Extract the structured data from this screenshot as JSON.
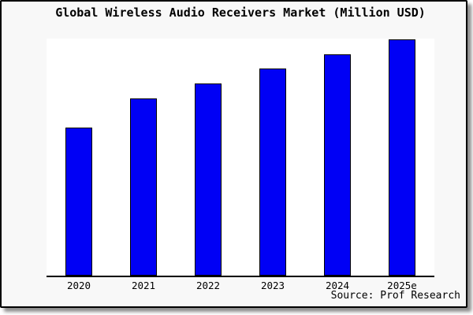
{
  "window": {
    "card_background": "#f8f8f8",
    "plot_background": "#ffffff",
    "frame_border_color": "#000000"
  },
  "chart_data": {
    "type": "bar",
    "title": "Global Wireless Audio Receivers Market (Million USD)",
    "categories": [
      "2020",
      "2021",
      "2022",
      "2023",
      "2024",
      "2025e"
    ],
    "values": [
      188,
      225,
      244,
      263,
      281,
      300
    ],
    "values_note": "chart shows no y-axis scale or data labels; values are relative bar heights (px), max plot height 301",
    "xlabel": "",
    "ylabel": "",
    "ylim": [
      0,
      301
    ],
    "grid": false,
    "legend": false,
    "bar_color": "#0000f5",
    "bar_border_color": "#000000",
    "source_note": "Source: Prof Research"
  }
}
